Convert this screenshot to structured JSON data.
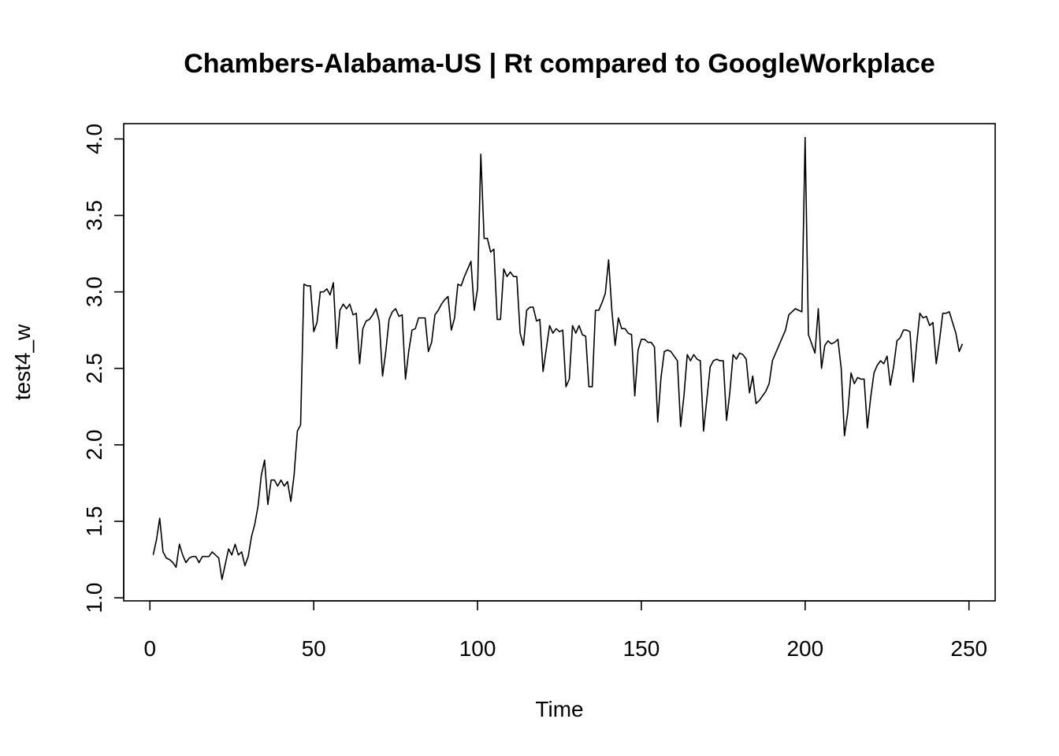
{
  "chart_data": {
    "type": "line",
    "title": "Chambers-Alabama-US | Rt compared to GoogleWorkplace",
    "xlabel": "Time",
    "ylabel": "test4_w",
    "xlim": [
      -8,
      258
    ],
    "ylim": [
      0.98,
      4.1
    ],
    "x_ticks": [
      0,
      50,
      100,
      150,
      200,
      250
    ],
    "x_tick_labels": [
      "0",
      "50",
      "100",
      "150",
      "200",
      "250"
    ],
    "y_ticks": [
      1.0,
      1.5,
      2.0,
      2.5,
      3.0,
      3.5,
      4.0
    ],
    "y_tick_labels": [
      "1.0",
      "1.5",
      "2.0",
      "2.5",
      "3.0",
      "3.5",
      "4.0"
    ],
    "grid": false,
    "line_color": "#000000",
    "series": [
      {
        "x": [
          1,
          2,
          3,
          4,
          5,
          6,
          7,
          8,
          9,
          10,
          11,
          12,
          13,
          14,
          15,
          16,
          17,
          18,
          19,
          20,
          21,
          22,
          23,
          24,
          25,
          26,
          27,
          28,
          29,
          30,
          31,
          32,
          33,
          34,
          35,
          36,
          37,
          38,
          39,
          40,
          41,
          42,
          43,
          44,
          45,
          46,
          47,
          48,
          49,
          50,
          51,
          52,
          53,
          54,
          55,
          56,
          57,
          58,
          59,
          60,
          61,
          62,
          63,
          64,
          65,
          66,
          67,
          68,
          69,
          70,
          71,
          72,
          73,
          74,
          75,
          76,
          77,
          78,
          79,
          80,
          81,
          82,
          83,
          84,
          85,
          86,
          87,
          88,
          89,
          90,
          91,
          92,
          93,
          94,
          95,
          96,
          97,
          98,
          99,
          100,
          101,
          102,
          103,
          104,
          105,
          106,
          107,
          108,
          109,
          110,
          111,
          112,
          113,
          114,
          115,
          116,
          117,
          118,
          119,
          120,
          121,
          122,
          123,
          124,
          125,
          126,
          127,
          128,
          129,
          130,
          131,
          132,
          133,
          134,
          135,
          136,
          137,
          138,
          139,
          140,
          141,
          142,
          143,
          144,
          145,
          146,
          147,
          148,
          149,
          150,
          151,
          152,
          153,
          154,
          155,
          156,
          157,
          158,
          159,
          160,
          161,
          162,
          163,
          164,
          165,
          166,
          167,
          168,
          169,
          170,
          171,
          172,
          173,
          174,
          175,
          176,
          177,
          178,
          179,
          180,
          181,
          182,
          183,
          184,
          185,
          186,
          187,
          188,
          189,
          190,
          191,
          192,
          193,
          194,
          195,
          196,
          197,
          198,
          199,
          200,
          201,
          202,
          203,
          204,
          205,
          206,
          207,
          208,
          209,
          210,
          211,
          212,
          213,
          214,
          215,
          216,
          217,
          218,
          219,
          220,
          221,
          222,
          223,
          224,
          225,
          226,
          227,
          228,
          229,
          230,
          231,
          232,
          233,
          234,
          235,
          236,
          237,
          238,
          239,
          240,
          241,
          242,
          243,
          244,
          245,
          246,
          247,
          248
        ],
        "values": [
          1.28,
          1.38,
          1.52,
          1.3,
          1.26,
          1.25,
          1.23,
          1.2,
          1.35,
          1.28,
          1.23,
          1.26,
          1.27,
          1.27,
          1.23,
          1.27,
          1.27,
          1.27,
          1.3,
          1.28,
          1.26,
          1.12,
          1.22,
          1.32,
          1.28,
          1.35,
          1.28,
          1.3,
          1.21,
          1.27,
          1.4,
          1.48,
          1.6,
          1.8,
          1.9,
          1.61,
          1.77,
          1.77,
          1.73,
          1.77,
          1.73,
          1.76,
          1.63,
          1.8,
          2.09,
          2.13,
          3.05,
          3.04,
          3.04,
          2.74,
          2.8,
          3.0,
          3.0,
          3.02,
          2.98,
          3.06,
          2.63,
          2.88,
          2.92,
          2.89,
          2.92,
          2.85,
          2.86,
          2.53,
          2.76,
          2.81,
          2.82,
          2.85,
          2.89,
          2.81,
          2.45,
          2.61,
          2.82,
          2.87,
          2.89,
          2.84,
          2.85,
          2.43,
          2.61,
          2.75,
          2.76,
          2.83,
          2.83,
          2.83,
          2.61,
          2.67,
          2.85,
          2.88,
          2.92,
          2.95,
          2.97,
          2.75,
          2.83,
          3.05,
          3.04,
          3.1,
          3.15,
          3.2,
          2.88,
          3.02,
          3.9,
          3.35,
          3.35,
          3.26,
          3.28,
          2.82,
          2.82,
          3.15,
          3.1,
          3.13,
          3.1,
          3.1,
          2.73,
          2.65,
          2.88,
          2.9,
          2.9,
          2.81,
          2.82,
          2.48,
          2.63,
          2.78,
          2.73,
          2.76,
          2.74,
          2.75,
          2.38,
          2.43,
          2.78,
          2.73,
          2.78,
          2.72,
          2.71,
          2.38,
          2.38,
          2.88,
          2.88,
          2.93,
          2.99,
          3.21,
          2.88,
          2.65,
          2.83,
          2.76,
          2.76,
          2.73,
          2.72,
          2.32,
          2.62,
          2.69,
          2.69,
          2.67,
          2.67,
          2.64,
          2.15,
          2.44,
          2.61,
          2.62,
          2.61,
          2.58,
          2.55,
          2.12,
          2.32,
          2.59,
          2.55,
          2.59,
          2.56,
          2.55,
          2.09,
          2.3,
          2.51,
          2.55,
          2.56,
          2.55,
          2.55,
          2.16,
          2.34,
          2.59,
          2.56,
          2.6,
          2.59,
          2.56,
          2.34,
          2.45,
          2.27,
          2.29,
          2.32,
          2.35,
          2.4,
          2.55,
          2.6,
          2.65,
          2.7,
          2.75,
          2.85,
          2.87,
          2.89,
          2.88,
          2.87,
          4.01,
          2.72,
          2.66,
          2.6,
          2.89,
          2.5,
          2.65,
          2.68,
          2.66,
          2.67,
          2.69,
          2.5,
          2.06,
          2.21,
          2.47,
          2.4,
          2.44,
          2.43,
          2.43,
          2.11,
          2.31,
          2.47,
          2.52,
          2.55,
          2.53,
          2.58,
          2.39,
          2.51,
          2.68,
          2.7,
          2.75,
          2.75,
          2.74,
          2.41,
          2.65,
          2.86,
          2.83,
          2.84,
          2.78,
          2.8,
          2.53,
          2.68,
          2.86,
          2.86,
          2.87,
          2.8,
          2.73,
          2.61,
          2.66
        ]
      }
    ]
  }
}
